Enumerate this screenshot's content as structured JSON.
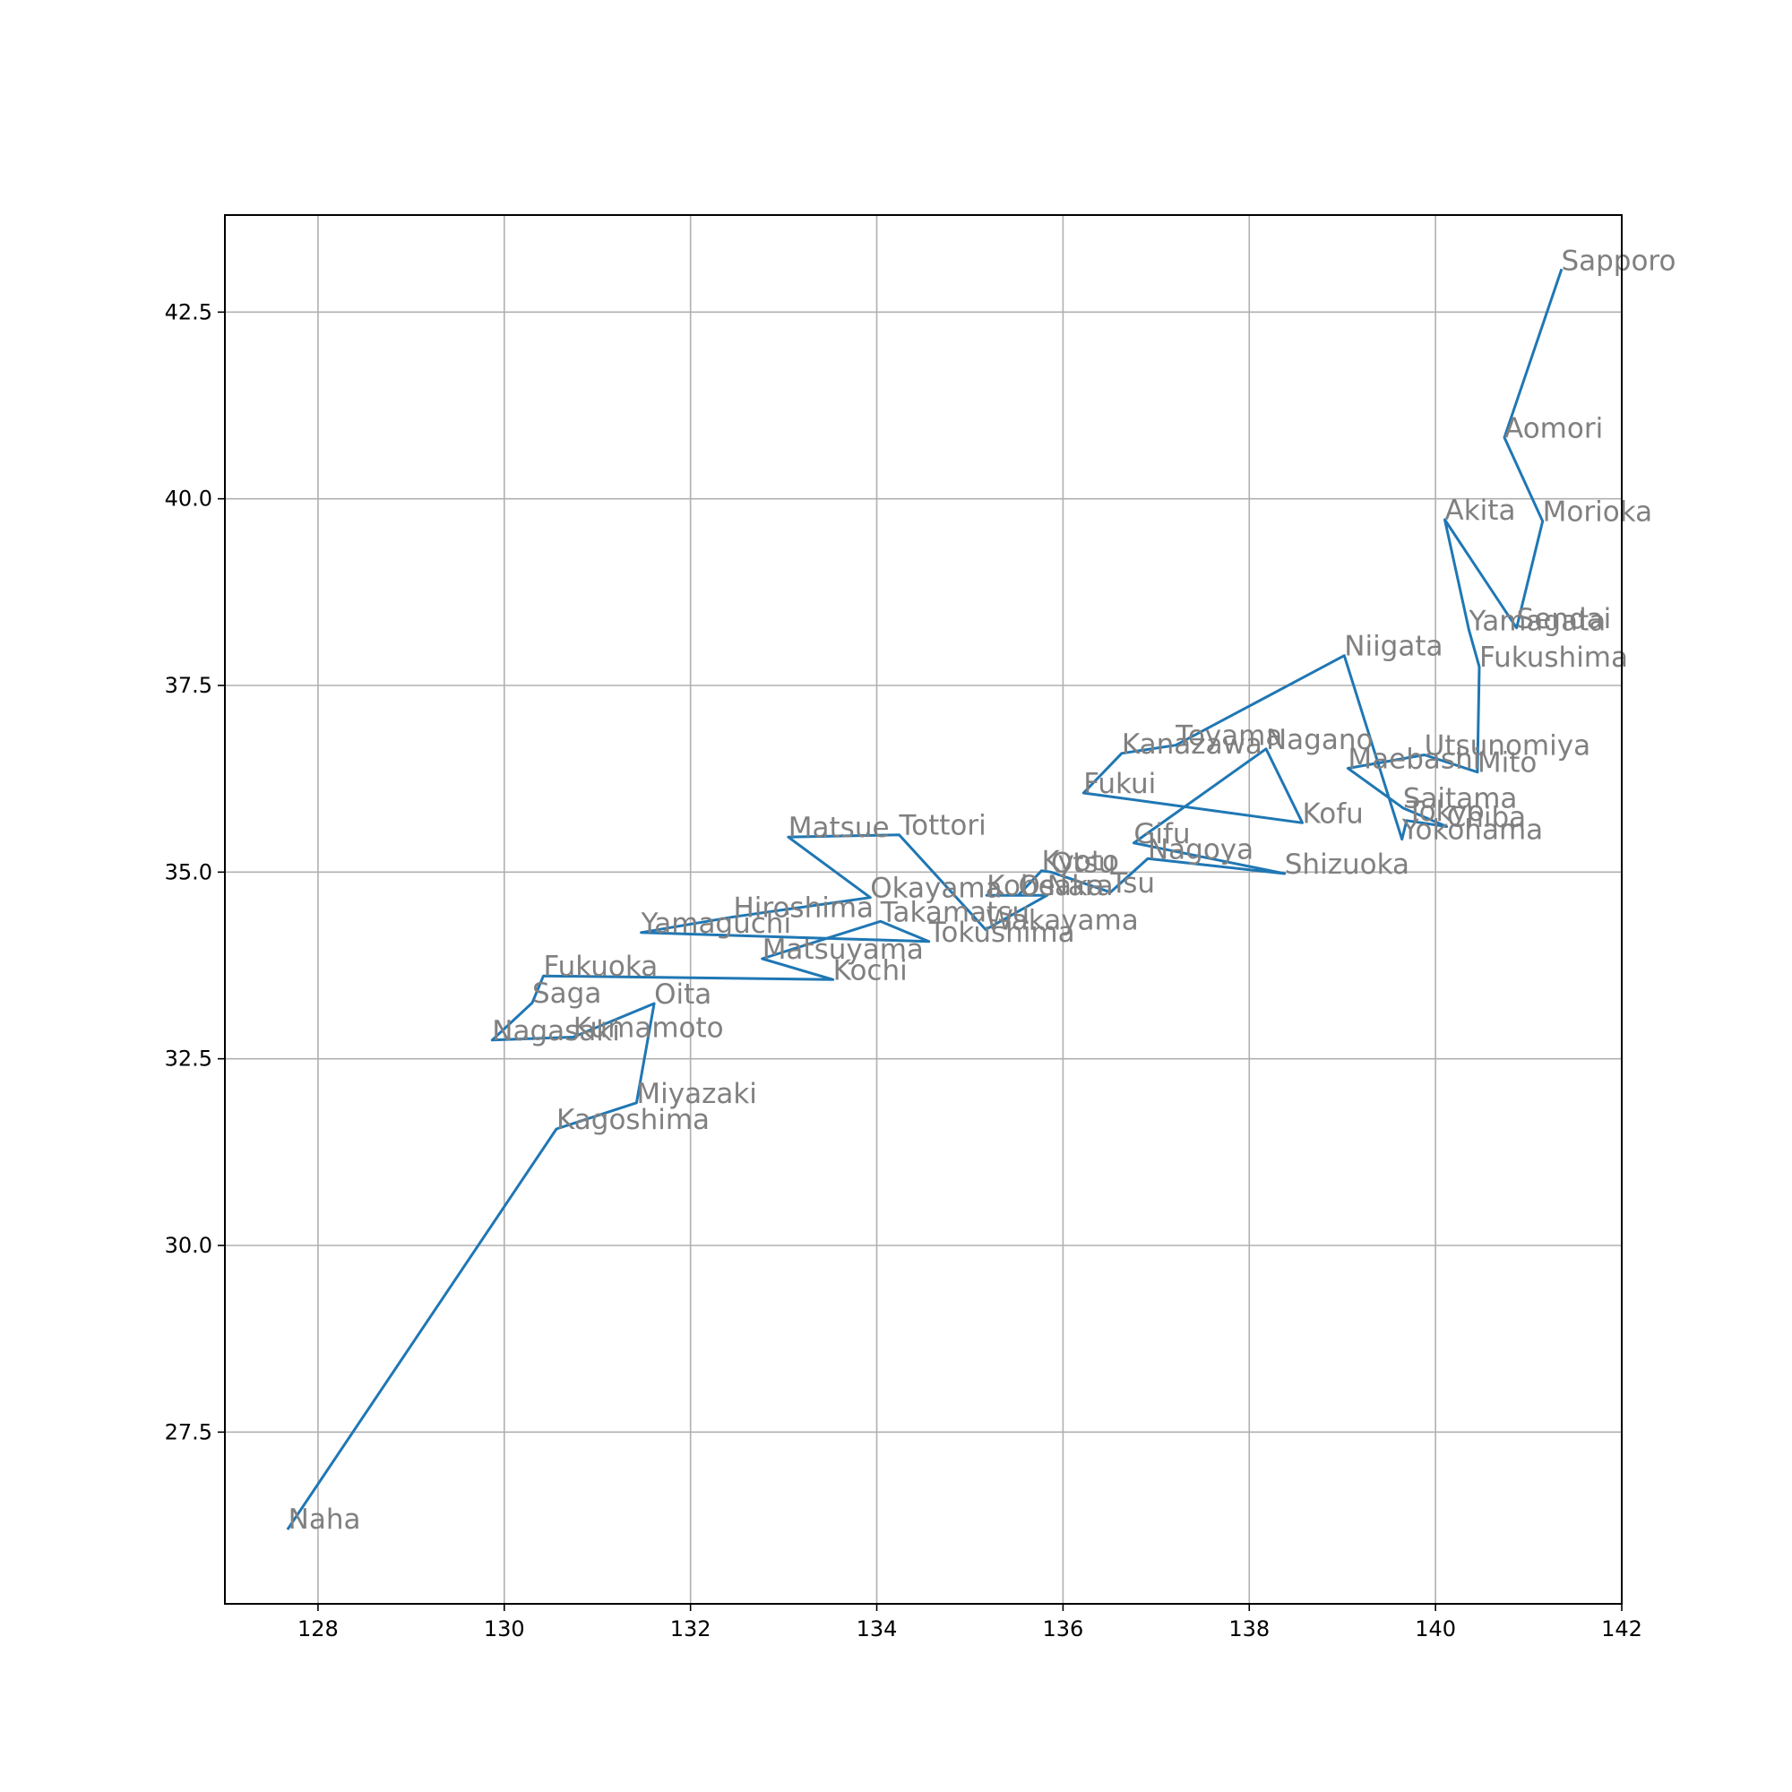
{
  "chart_data": {
    "type": "line",
    "title": "",
    "xlabel": "",
    "ylabel": "",
    "xlim": [
      127.0,
      142.0
    ],
    "ylim": [
      25.2,
      43.8
    ],
    "x_ticks": [
      128,
      130,
      132,
      134,
      136,
      138,
      140,
      142
    ],
    "x_tick_labels": [
      "128",
      "130",
      "132",
      "134",
      "136",
      "138",
      "140",
      "142"
    ],
    "y_ticks": [
      27.5,
      30.0,
      32.5,
      35.0,
      37.5,
      40.0,
      42.5
    ],
    "y_tick_labels": [
      "27.5",
      "30.0",
      "32.5",
      "35.0",
      "37.5",
      "40.0",
      "42.5"
    ],
    "grid": true,
    "legend": "none",
    "line_color": "#1f77b4",
    "label_color": "#808080",
    "points": [
      {
        "name": "Sapporo",
        "x": 141.35,
        "y": 43.06
      },
      {
        "name": "Aomori",
        "x": 140.74,
        "y": 40.82
      },
      {
        "name": "Morioka",
        "x": 141.15,
        "y": 39.7
      },
      {
        "name": "Sendai",
        "x": 140.87,
        "y": 38.27
      },
      {
        "name": "Akita",
        "x": 140.1,
        "y": 39.72
      },
      {
        "name": "Yamagata",
        "x": 140.36,
        "y": 38.24
      },
      {
        "name": "Fukushima",
        "x": 140.47,
        "y": 37.75
      },
      {
        "name": "Mito",
        "x": 140.45,
        "y": 36.34
      },
      {
        "name": "Utsunomiya",
        "x": 139.88,
        "y": 36.57
      },
      {
        "name": "Maebashi",
        "x": 139.06,
        "y": 36.39
      },
      {
        "name": "Saitama",
        "x": 139.65,
        "y": 35.86
      },
      {
        "name": "Chiba",
        "x": 140.12,
        "y": 35.61
      },
      {
        "name": "Tokyo",
        "x": 139.69,
        "y": 35.69
      },
      {
        "name": "Yokohama",
        "x": 139.64,
        "y": 35.44
      },
      {
        "name": "Niigata",
        "x": 139.02,
        "y": 37.9
      },
      {
        "name": "Toyama",
        "x": 137.21,
        "y": 36.7
      },
      {
        "name": "Kanazawa",
        "x": 136.63,
        "y": 36.59
      },
      {
        "name": "Fukui",
        "x": 136.22,
        "y": 36.06
      },
      {
        "name": "Kofu",
        "x": 138.57,
        "y": 35.66
      },
      {
        "name": "Nagano",
        "x": 138.18,
        "y": 36.65
      },
      {
        "name": "Gifu",
        "x": 136.76,
        "y": 35.39
      },
      {
        "name": "Shizuoka",
        "x": 138.38,
        "y": 34.98
      },
      {
        "name": "Nagoya",
        "x": 136.91,
        "y": 35.18
      },
      {
        "name": "Tsu",
        "x": 136.51,
        "y": 34.73
      },
      {
        "name": "Otsu",
        "x": 135.87,
        "y": 35.0
      },
      {
        "name": "Kyoto",
        "x": 135.77,
        "y": 35.02
      },
      {
        "name": "Osaka",
        "x": 135.52,
        "y": 34.69
      },
      {
        "name": "Kobe",
        "x": 135.18,
        "y": 34.69
      },
      {
        "name": "Nara",
        "x": 135.83,
        "y": 34.69
      },
      {
        "name": "Wakayama",
        "x": 135.17,
        "y": 34.23
      },
      {
        "name": "Tottori",
        "x": 134.24,
        "y": 35.5
      },
      {
        "name": "Matsue",
        "x": 133.05,
        "y": 35.47
      },
      {
        "name": "Okayama",
        "x": 133.93,
        "y": 34.66
      },
      {
        "name": "Hiroshima",
        "x": 132.46,
        "y": 34.4
      },
      {
        "name": "Yamaguchi",
        "x": 131.47,
        "y": 34.19
      },
      {
        "name": "Tokushima",
        "x": 134.56,
        "y": 34.07
      },
      {
        "name": "Takamatsu",
        "x": 134.04,
        "y": 34.34
      },
      {
        "name": "Matsuyama",
        "x": 132.77,
        "y": 33.84
      },
      {
        "name": "Kochi",
        "x": 133.53,
        "y": 33.56
      },
      {
        "name": "Fukuoka",
        "x": 130.42,
        "y": 33.61
      },
      {
        "name": "Saga",
        "x": 130.3,
        "y": 33.25
      },
      {
        "name": "Nagasaki",
        "x": 129.87,
        "y": 32.75
      },
      {
        "name": "Kumamoto",
        "x": 130.74,
        "y": 32.79
      },
      {
        "name": "Oita",
        "x": 131.61,
        "y": 33.24
      },
      {
        "name": "Miyazaki",
        "x": 131.42,
        "y": 31.91
      },
      {
        "name": "Kagoshima",
        "x": 130.56,
        "y": 31.56
      },
      {
        "name": "Naha",
        "x": 127.68,
        "y": 26.21
      }
    ]
  }
}
